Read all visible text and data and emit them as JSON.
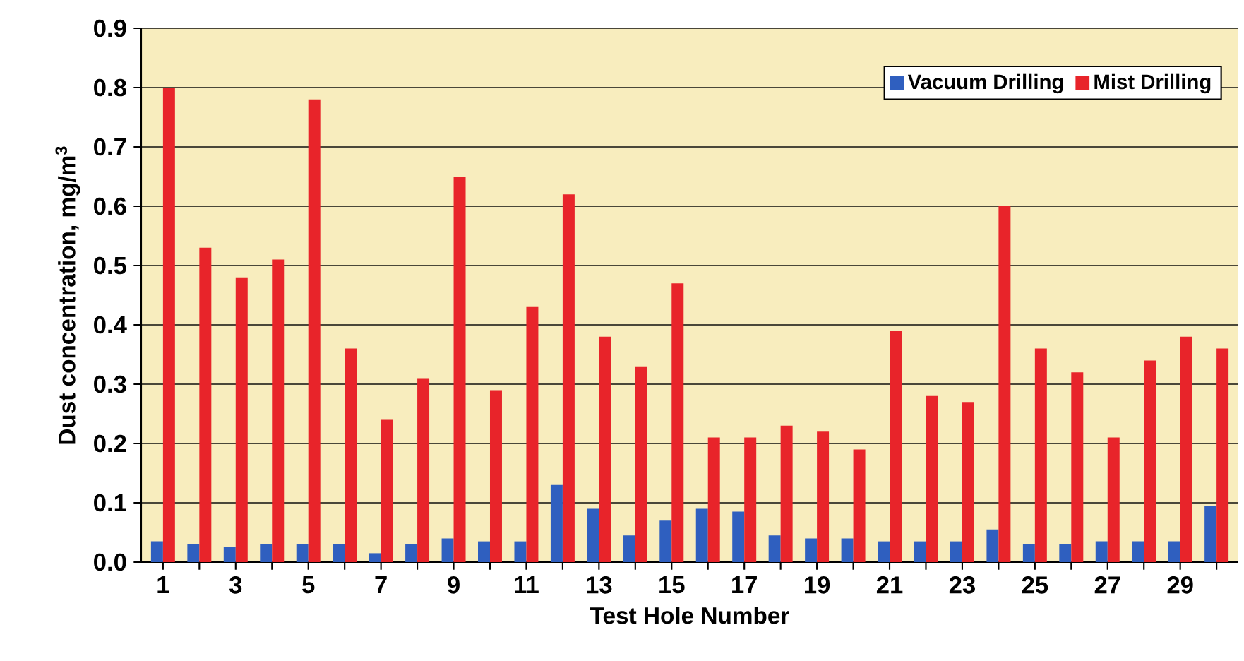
{
  "chart_data": {
    "type": "bar",
    "xlabel": "Test Hole Number",
    "ylabel": "Dust concentration, mg/m$^{3}$",
    "categories": [
      "1",
      null,
      "3",
      null,
      "5",
      null,
      "7",
      null,
      "9",
      null,
      "11",
      null,
      "13",
      null,
      "15",
      null,
      "17",
      null,
      "19",
      null,
      "21",
      null,
      "23",
      null,
      "25",
      null,
      "27",
      null,
      "29",
      null
    ],
    "series": [
      {
        "name": "Vacuum Drilling",
        "color": "#2f5fbf",
        "values": [
          0.035,
          0.03,
          0.025,
          0.03,
          0.03,
          0.03,
          0.015,
          0.03,
          0.04,
          0.035,
          0.035,
          0.13,
          0.09,
          0.045,
          0.07,
          0.09,
          0.085,
          0.045,
          0.04,
          0.04,
          0.035,
          0.035,
          0.035,
          0.055,
          0.03,
          0.03,
          0.035,
          0.035,
          0.035,
          0.095
        ]
      },
      {
        "name": "Mist Drilling",
        "color": "#e8242a",
        "values": [
          0.8,
          0.53,
          0.48,
          0.51,
          0.78,
          0.36,
          0.24,
          0.31,
          0.65,
          0.29,
          0.43,
          0.62,
          0.38,
          0.33,
          0.47,
          0.21,
          0.21,
          0.23,
          0.22,
          0.19,
          0.39,
          0.28,
          0.27,
          0.6,
          0.36,
          0.32,
          0.21,
          0.34,
          0.38,
          0.36
        ]
      }
    ],
    "ylim": [
      0,
      0.9
    ],
    "yticks": [
      {
        "value": 0,
        "label": "0.0"
      },
      {
        "value": 0.1,
        "label": "0.1"
      },
      {
        "value": 0.2,
        "label": "0.2"
      },
      {
        "value": 0.3,
        "label": "0.3"
      },
      {
        "value": 0.4,
        "label": "0.4"
      },
      {
        "value": 0.5,
        "label": "0.5"
      },
      {
        "value": 0.6,
        "label": "0.6"
      },
      {
        "value": 0.7,
        "label": "0.7"
      },
      {
        "value": 0.8,
        "label": "0.8"
      },
      {
        "value": 0.9,
        "label": "0.9"
      }
    ],
    "grid": "y",
    "legend": "top right"
  }
}
